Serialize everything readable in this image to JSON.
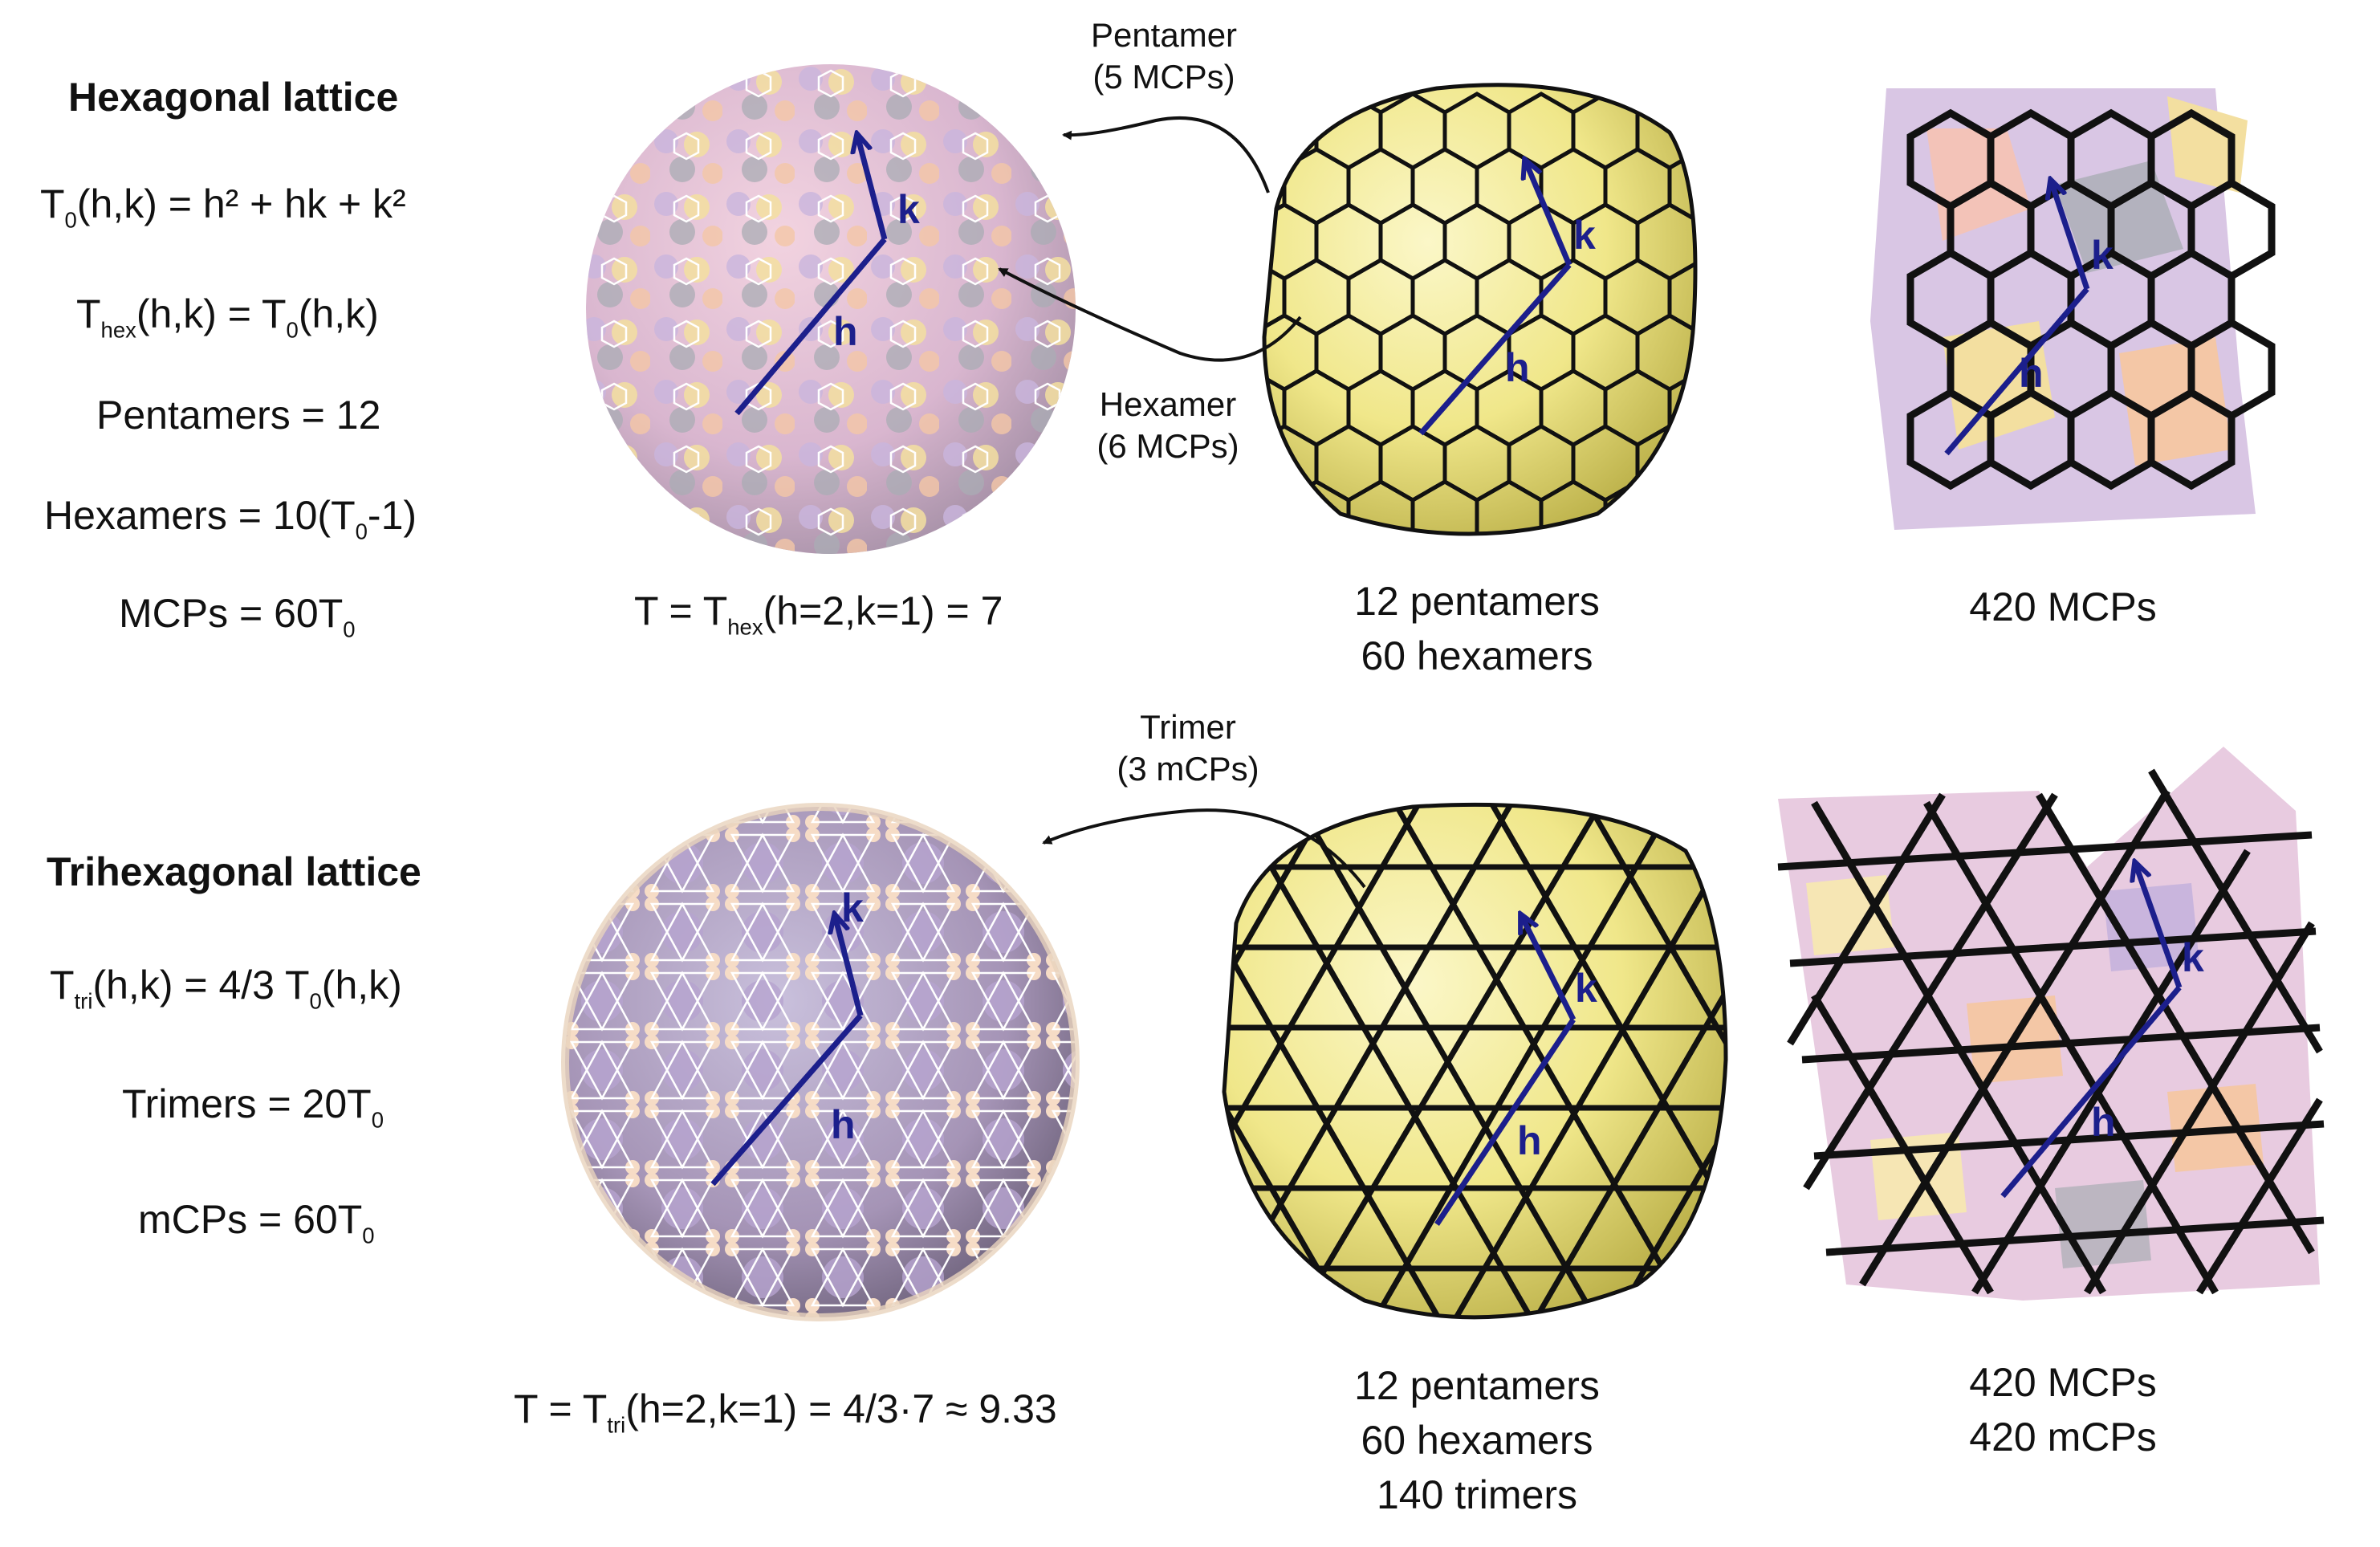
{
  "hexagonal": {
    "heading": "Hexagonal lattice",
    "f1": {
      "a": "T",
      "sub": "0",
      "b": "(h,k) = h² + hk + k²"
    },
    "f2": {
      "a": "T",
      "sub1": "hex",
      "b": "(h,k) = T",
      "sub2": "0",
      "c": "(h,k)"
    },
    "f3": "Pentamers = 12",
    "f4": {
      "a": "Hexamers = 10(T",
      "sub": "0",
      "b": "-1)"
    },
    "f5": {
      "a": "MCPs = 60T",
      "sub": "0"
    },
    "caption_left": {
      "a": "T = T",
      "sub": "hex",
      "b": "(h=2,k=1) = 7"
    },
    "caption_mid": [
      "12 pentamers",
      "60 hexamers"
    ],
    "caption_right": [
      "420 MCPs"
    ],
    "callout_pentamer": [
      "Pentamer",
      "(5 MCPs)"
    ],
    "callout_hexamer": [
      "Hexamer",
      "(6 MCPs)"
    ]
  },
  "trihexagonal": {
    "heading": "Trihexagonal lattice",
    "f1": {
      "a": "T",
      "sub1": "tri",
      "b": "(h,k) = 4/3 T",
      "sub2": "0",
      "c": "(h,k)"
    },
    "f2": {
      "a": "Trimers = 20T",
      "sub": "0"
    },
    "f3": {
      "a": "mCPs = 60T",
      "sub": "0"
    },
    "caption_left": {
      "a": "T = T",
      "sub": "tri",
      "b": "(h=2,k=1) = 4/3·7 ≈ 9.33"
    },
    "caption_mid": [
      "12 pentamers",
      "60 hexamers",
      "140 trimers"
    ],
    "caption_right": [
      "420 MCPs",
      "420 mCPs"
    ],
    "callout_trimer": [
      "Trimer",
      "(3 mCPs)"
    ]
  },
  "vector_labels": {
    "h": "h",
    "k": "k"
  },
  "colors": {
    "vector": "#1c1f8c",
    "shell": "#f2ea8c",
    "lattice_line": "#111111",
    "mcp_pink": "#e9b3c8",
    "mcp_lilac": "#c9b5dd",
    "mcp_gray": "#a9acb4",
    "mcp_yellow": "#f3dfa0",
    "mcp_peach": "#f4c7a6"
  }
}
